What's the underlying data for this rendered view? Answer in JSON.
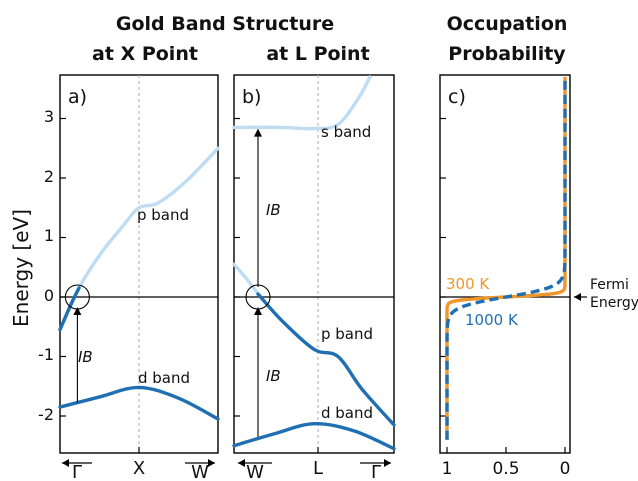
{
  "titles": {
    "main": "Gold Band Structure",
    "panel_a": "at X Point",
    "panel_b": "at L Point",
    "panel_c_line1": "Occupation",
    "panel_c_line2": "Probability"
  },
  "ylabel": "Energy [eV]",
  "fermi_label_line1": "Fermi",
  "fermi_label_line2": "Energy",
  "colors": {
    "dark_blue": "#1f6fb2",
    "light_blue": "#bfdcf3",
    "orange": "#f0962a",
    "black": "#000000",
    "gray_dash": "#aaaaaa"
  },
  "chart_data": [
    {
      "type": "line",
      "panel_label": "a)",
      "ylim": [
        -2.4,
        3.7
      ],
      "yticks": [
        3,
        2,
        1,
        0,
        -1,
        -2
      ],
      "ytick_labels": [
        "3",
        "2",
        "1",
        "0",
        "-1",
        "-2"
      ],
      "xtick_labels": [
        "Γ",
        "X",
        "W"
      ],
      "series": [
        {
          "name": "p band",
          "color": "light",
          "x": [
            0,
            0.12,
            0.25,
            0.4,
            0.5,
            0.62,
            0.8,
            1.0
          ],
          "y": [
            -0.55,
            0.15,
            0.7,
            1.2,
            1.5,
            1.58,
            1.95,
            2.5
          ]
        },
        {
          "name": "d band",
          "color": "dark",
          "x": [
            0,
            0.25,
            0.5,
            0.75,
            1.0
          ],
          "y": [
            -1.85,
            -1.68,
            -1.52,
            -1.7,
            -2.05
          ]
        },
        {
          "name": "",
          "color": "dark",
          "x": [
            0,
            0.07,
            0.12
          ],
          "y": [
            -0.55,
            -0.12,
            0.15
          ]
        }
      ],
      "annotations": [
        "p band",
        "d band",
        "IB"
      ],
      "ib_arrow": {
        "x": 0.11,
        "from": -1.78,
        "to": 0
      },
      "circle_at": {
        "x": 0.11,
        "y": 0
      }
    },
    {
      "type": "line",
      "panel_label": "b)",
      "ylim": [
        -2.4,
        3.7
      ],
      "xtick_labels": [
        "W",
        "L",
        "Γ"
      ],
      "series": [
        {
          "name": "s band",
          "color": "light",
          "x": [
            0,
            0.3,
            0.5,
            0.65,
            0.78,
            0.85
          ],
          "y": [
            2.85,
            2.85,
            2.83,
            2.9,
            3.35,
            3.7
          ]
        },
        {
          "name": "",
          "color": "light",
          "x": [
            0,
            0.08,
            0.15
          ],
          "y": [
            0.55,
            0.3,
            0.05
          ]
        },
        {
          "name": "p band",
          "color": "dark",
          "x": [
            0.15,
            0.3,
            0.5,
            0.65,
            0.8,
            1.0
          ],
          "y": [
            0.05,
            -0.4,
            -0.88,
            -1.0,
            -1.55,
            -2.15
          ]
        },
        {
          "name": "d band",
          "color": "dark",
          "x": [
            0,
            0.25,
            0.5,
            0.75,
            1.0
          ],
          "y": [
            -2.5,
            -2.3,
            -2.13,
            -2.25,
            -2.55
          ]
        }
      ],
      "annotations": [
        "s band",
        "p band",
        "d band",
        "IB",
        "IB"
      ],
      "ib_arrow_upper": {
        "x": 0.15,
        "from": 0,
        "to": 2.83
      },
      "ib_arrow_lower": {
        "x": 0.15,
        "from": -2.35,
        "to": 0
      },
      "circle_at": {
        "x": 0.15,
        "y": 0
      }
    },
    {
      "type": "line",
      "panel_label": "c)",
      "ylim": [
        -2.4,
        3.7
      ],
      "xlim": [
        1,
        0
      ],
      "xtick_labels": [
        "1",
        "0.5",
        "0"
      ],
      "xticks": [
        1,
        0.5,
        0
      ],
      "series": [
        {
          "name": "300 K",
          "color": "orange",
          "note": "Fermi-Dirac occupation at 300 K"
        },
        {
          "name": "1000 K",
          "color": "dark",
          "note": "Fermi-Dirac occupation at 1000 K"
        }
      ]
    }
  ]
}
